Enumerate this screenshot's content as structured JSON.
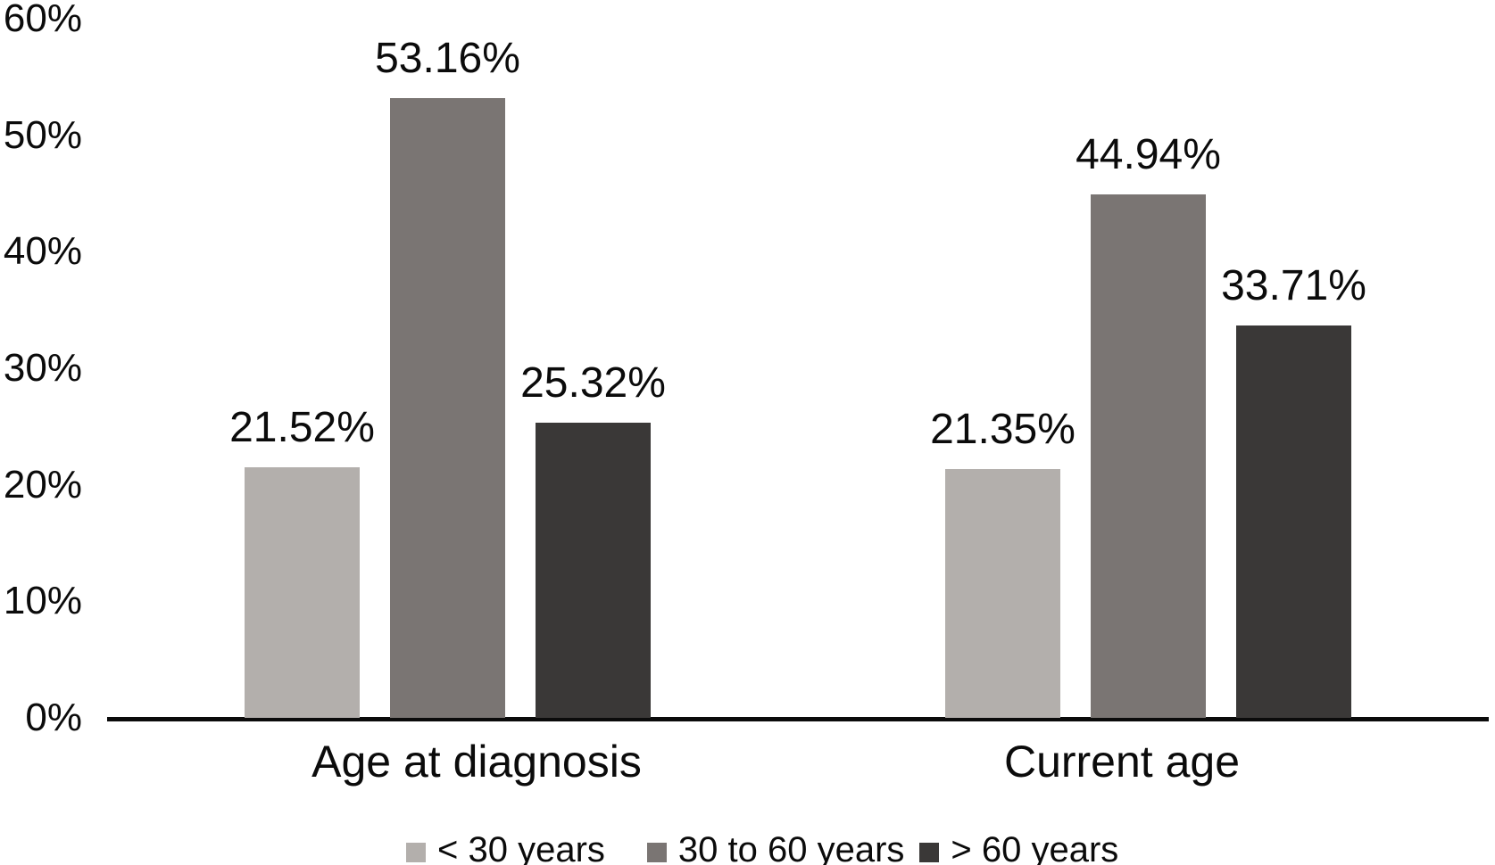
{
  "figure": {
    "background": "#ffffff",
    "text_color": "#0b0b0b",
    "axis_line_color": "#0b0b0b"
  },
  "chart_data": {
    "type": "bar",
    "title": "",
    "xlabel": "",
    "ylabel": "",
    "categories": [
      "Age at diagnosis",
      "Current age"
    ],
    "series": [
      {
        "name": "< 30 years",
        "color": "#b3afac",
        "values": [
          21.52,
          21.35
        ]
      },
      {
        "name": "30 to 60 years",
        "color": "#7a7573",
        "values": [
          53.16,
          44.94
        ]
      },
      {
        "name": "> 60 years",
        "color": "#3a3837",
        "values": [
          25.32,
          33.71
        ]
      }
    ],
    "value_labels": [
      [
        "21.52%",
        "53.16%",
        "25.32%"
      ],
      [
        "21.35%",
        "44.94%",
        "33.71%"
      ]
    ],
    "y_axis": {
      "unit": "%",
      "min": 0,
      "max": 60,
      "tick_step": 10,
      "ticks": [
        "0%",
        "10%",
        "20%",
        "30%",
        "40%",
        "50%",
        "60%"
      ]
    },
    "grid": false,
    "legend_position": "bottom"
  }
}
